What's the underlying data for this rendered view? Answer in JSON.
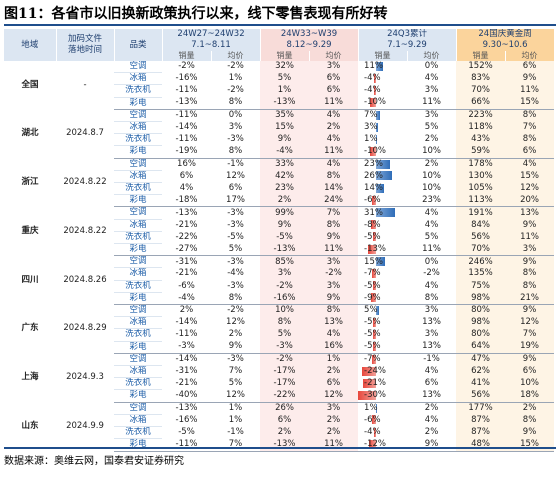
{
  "title": "图11：各省市以旧换新政策执行以来，线下零售表现有所好转",
  "table": {
    "header": {
      "region": "地域",
      "date": [
        "加码文件",
        "落地时间"
      ],
      "category": "品类",
      "periods": [
        {
          "name": "24W27~24W32",
          "range": "7.1~8.11"
        },
        {
          "name": "24W33~W39",
          "range": "8.12~9.29"
        },
        {
          "name": "24Q3累计",
          "range": "7.1~9.29"
        },
        {
          "name": "24国庆黄金周",
          "range": "9.30~10.6"
        }
      ],
      "metrics": [
        "销量",
        "均价"
      ]
    },
    "regions": [
      {
        "name": "全国",
        "date": "-",
        "rows": [
          {
            "category": "空调",
            "cells": [
              "-2%",
              "-2%",
              "32%",
              "3%",
              "11%",
              "0%",
              "152%",
              "6%"
            ]
          },
          {
            "category": "冰箱",
            "cells": [
              "-16%",
              "1%",
              "5%",
              "6%",
              "-4%",
              "4%",
              "83%",
              "9%"
            ]
          },
          {
            "category": "洗衣机",
            "cells": [
              "-11%",
              "-2%",
              "1%",
              "6%",
              "-4%",
              "3%",
              "70%",
              "11%"
            ]
          },
          {
            "category": "彩电",
            "cells": [
              "-13%",
              "8%",
              "-13%",
              "11%",
              "-10%",
              "11%",
              "66%",
              "15%"
            ]
          }
        ]
      },
      {
        "name": "湖北",
        "date": "2024.8.7",
        "rows": [
          {
            "category": "空调",
            "cells": [
              "-11%",
              "0%",
              "35%",
              "4%",
              "7%",
              "3%",
              "223%",
              "8%"
            ]
          },
          {
            "category": "冰箱",
            "cells": [
              "-14%",
              "3%",
              "15%",
              "2%",
              "3%",
              "5%",
              "118%",
              "7%"
            ]
          },
          {
            "category": "洗衣机",
            "cells": [
              "-11%",
              "-3%",
              "9%",
              "4%",
              "1%",
              "2%",
              "43%",
              "8%"
            ]
          },
          {
            "category": "彩电",
            "cells": [
              "-19%",
              "8%",
              "-4%",
              "11%",
              "-10%",
              "10%",
              "59%",
              "6%"
            ]
          }
        ]
      },
      {
        "name": "浙江",
        "date": "2024.8.22",
        "rows": [
          {
            "category": "空调",
            "cells": [
              "16%",
              "-1%",
              "33%",
              "4%",
              "23%",
              "2%",
              "178%",
              "4%"
            ]
          },
          {
            "category": "冰箱",
            "cells": [
              "6%",
              "12%",
              "42%",
              "8%",
              "26%",
              "10%",
              "130%",
              "15%"
            ]
          },
          {
            "category": "洗衣机",
            "cells": [
              "4%",
              "6%",
              "23%",
              "14%",
              "14%",
              "10%",
              "105%",
              "12%"
            ]
          },
          {
            "category": "彩电",
            "cells": [
              "-18%",
              "17%",
              "2%",
              "24%",
              "-6%",
              "23%",
              "113%",
              "20%"
            ]
          }
        ]
      },
      {
        "name": "重庆",
        "date": "2024.8.22",
        "rows": [
          {
            "category": "空调",
            "cells": [
              "-13%",
              "-3%",
              "99%",
              "7%",
              "31%",
              "4%",
              "191%",
              "13%"
            ]
          },
          {
            "category": "冰箱",
            "cells": [
              "-21%",
              "-3%",
              "9%",
              "8%",
              "-8%",
              "4%",
              "84%",
              "9%"
            ]
          },
          {
            "category": "洗衣机",
            "cells": [
              "-22%",
              "-5%",
              "-5%",
              "9%",
              "-5%",
              "5%",
              "56%",
              "11%"
            ]
          },
          {
            "category": "彩电",
            "cells": [
              "-27%",
              "5%",
              "-13%",
              "11%",
              "-13%",
              "11%",
              "70%",
              "3%"
            ]
          }
        ]
      },
      {
        "name": "四川",
        "date": "2024.8.26",
        "rows": [
          {
            "category": "空调",
            "cells": [
              "-31%",
              "-3%",
              "85%",
              "3%",
              "15%",
              "0%",
              "246%",
              "9%"
            ]
          },
          {
            "category": "冰箱",
            "cells": [
              "-21%",
              "-4%",
              "3%",
              "-2%",
              "-7%",
              "-2%",
              "135%",
              "8%"
            ]
          },
          {
            "category": "洗衣机",
            "cells": [
              "-6%",
              "-3%",
              "-2%",
              "3%",
              "-5%",
              "4%",
              "75%",
              "8%"
            ]
          },
          {
            "category": "彩电",
            "cells": [
              "-4%",
              "8%",
              "-16%",
              "9%",
              "-9%",
              "8%",
              "98%",
              "21%"
            ]
          }
        ]
      },
      {
        "name": "广东",
        "date": "2024.8.29",
        "rows": [
          {
            "category": "空调",
            "cells": [
              "2%",
              "-2%",
              "10%",
              "8%",
              "5%",
              "3%",
              "80%",
              "9%"
            ]
          },
          {
            "category": "冰箱",
            "cells": [
              "-14%",
              "12%",
              "8%",
              "13%",
              "-5%",
              "13%",
              "98%",
              "12%"
            ]
          },
          {
            "category": "洗衣机",
            "cells": [
              "-11%",
              "2%",
              "5%",
              "4%",
              "-5%",
              "3%",
              "80%",
              "7%"
            ]
          },
          {
            "category": "彩电",
            "cells": [
              "-3%",
              "9%",
              "-3%",
              "16%",
              "-5%",
              "13%",
              "64%",
              "19%"
            ]
          }
        ]
      },
      {
        "name": "上海",
        "date": "2024.9.3",
        "rows": [
          {
            "category": "空调",
            "cells": [
              "-14%",
              "-3%",
              "-2%",
              "1%",
              "-7%",
              "-1%",
              "47%",
              "9%"
            ]
          },
          {
            "category": "冰箱",
            "cells": [
              "-31%",
              "7%",
              "-17%",
              "2%",
              "-24%",
              "4%",
              "62%",
              "6%"
            ]
          },
          {
            "category": "洗衣机",
            "cells": [
              "-21%",
              "5%",
              "-17%",
              "6%",
              "-21%",
              "6%",
              "41%",
              "10%"
            ]
          },
          {
            "category": "彩电",
            "cells": [
              "-40%",
              "12%",
              "-22%",
              "12%",
              "-30%",
              "13%",
              "56%",
              "18%"
            ]
          }
        ]
      },
      {
        "name": "山东",
        "date": "2024.9.9",
        "rows": [
          {
            "category": "空调",
            "cells": [
              "-13%",
              "1%",
              "26%",
              "3%",
              "1%",
              "2%",
              "177%",
              "2%"
            ]
          },
          {
            "category": "冰箱",
            "cells": [
              "-16%",
              "1%",
              "6%",
              "2%",
              "-6%",
              "4%",
              "87%",
              "8%"
            ]
          },
          {
            "category": "洗衣机",
            "cells": [
              "-5%",
              "-1%",
              "2%",
              "2%",
              "-4%",
              "2%",
              "87%",
              "9%"
            ]
          },
          {
            "category": "彩电",
            "cells": [
              "-11%",
              "7%",
              "-13%",
              "11%",
              "-12%",
              "9%",
              "48%",
              "15%"
            ]
          }
        ]
      }
    ]
  },
  "source": "数据来源：奥维云网，国泰君安证券研究"
}
